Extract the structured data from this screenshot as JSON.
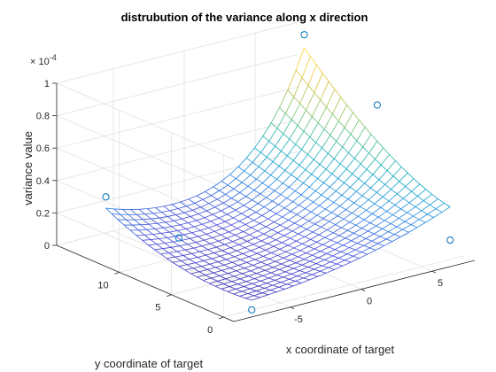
{
  "chart_data": {
    "type": "surface",
    "title": "distrubution of the variance along x direction",
    "xlabel": "x coordinate of target",
    "ylabel": "y coordinate of target",
    "zlabel": "variance value",
    "z_exponent_base": "× 10",
    "z_exponent_power": "-4",
    "xlim": [
      -9,
      8
    ],
    "ylim": [
      -1,
      16
    ],
    "zlim": [
      0,
      1
    ],
    "x_ticks": [
      -5,
      0,
      5
    ],
    "x_tick_labels": [
      "-5",
      "0",
      "5"
    ],
    "y_ticks": [
      0,
      5,
      10
    ],
    "y_tick_labels": [
      "0",
      "5",
      "10"
    ],
    "z_ticks": [
      0,
      0.2,
      0.4,
      0.6,
      0.8,
      1
    ],
    "z_tick_labels": [
      "0",
      "0.2",
      "0.4",
      "0.6",
      "0.8",
      "1"
    ],
    "z_unit": "1e-4",
    "surface": {
      "x_range": [
        -7,
        7
      ],
      "y_range": [
        0,
        14
      ],
      "grid_n": 25,
      "colormap": "parula",
      "edges_only": true
    },
    "markers": [
      {
        "x": -7,
        "y": 0,
        "z": 0.0
      },
      {
        "x": -7,
        "y": 14,
        "z": 0.31
      },
      {
        "x": 7,
        "y": 0,
        "z": 0.12
      },
      {
        "x": 7,
        "y": 14,
        "z": 1.0
      },
      {
        "x": 7,
        "y": 7,
        "z": 0.76
      },
      {
        "x": -7,
        "y": 7,
        "z": 0.25
      }
    ],
    "grid": true,
    "box": false
  },
  "colors": {
    "axis": "#262626",
    "grid": "#dedede",
    "marker": "#0072bd"
  }
}
